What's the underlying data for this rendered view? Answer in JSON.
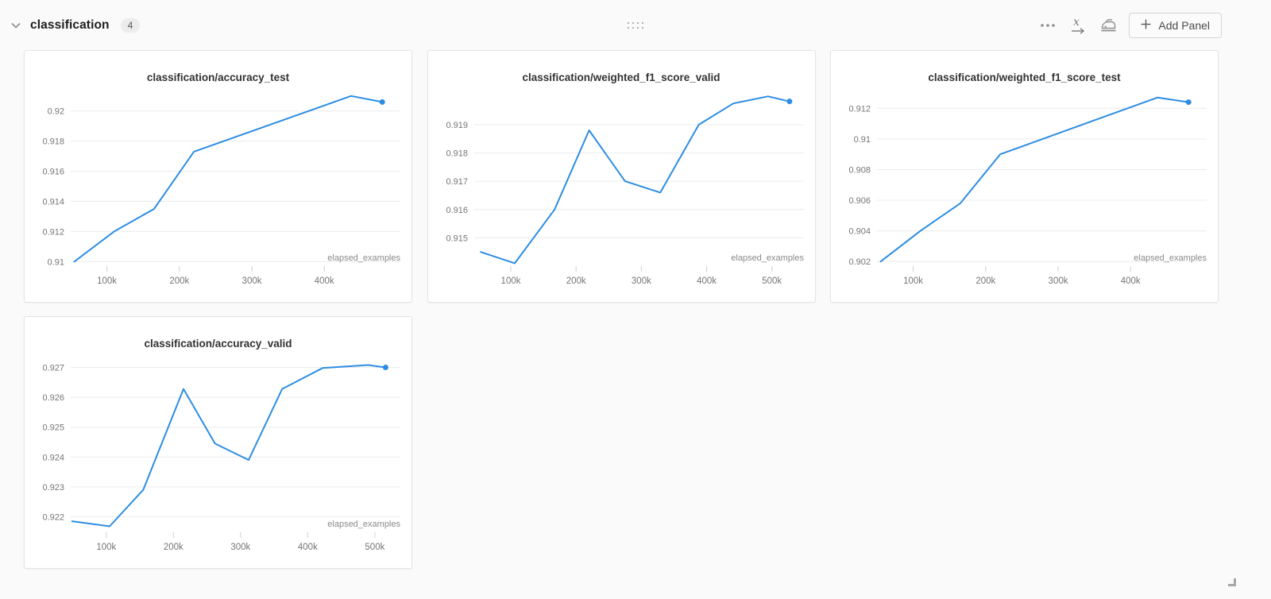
{
  "header": {
    "title": "classification",
    "count": "4"
  },
  "toolbar": {
    "add_panel_label": "Add Panel",
    "icons": [
      "chevron-down-icon",
      "drag-handle-icon",
      "ellipsis-icon",
      "x-axis-icon",
      "iron-panel-settings-icon",
      "plus-icon",
      "resize-corner-icon"
    ]
  },
  "colors": {
    "line": "#2d8de2",
    "grid": "#ececec",
    "tick_text": "#757575",
    "panel_border": "#e4e4e4",
    "background": "#fafafa"
  },
  "chart_data": [
    {
      "type": "line",
      "title": "classification/accuracy_test",
      "xlabel": "elapsed_examples",
      "x_units": "thousands of examples",
      "legend": "none",
      "grid": "horizontal only",
      "xlim": [
        50,
        505
      ],
      "ylim": [
        0.9097,
        0.9212
      ],
      "xticks": [
        {
          "v": 100,
          "label": "100k"
        },
        {
          "v": 200,
          "label": "200k"
        },
        {
          "v": 300,
          "label": "300k"
        },
        {
          "v": 400,
          "label": "400k"
        }
      ],
      "yticks": [
        {
          "v": 0.91,
          "label": "0.91"
        },
        {
          "v": 0.912,
          "label": "0.912"
        },
        {
          "v": 0.914,
          "label": "0.914"
        },
        {
          "v": 0.916,
          "label": "0.916"
        },
        {
          "v": 0.918,
          "label": "0.918"
        },
        {
          "v": 0.92,
          "label": "0.92"
        }
      ],
      "points": [
        [
          55,
          0.91
        ],
        [
          110,
          0.912
        ],
        [
          165,
          0.9135
        ],
        [
          220,
          0.9173
        ],
        [
          437,
          0.921
        ],
        [
          480,
          0.9206
        ]
      ]
    },
    {
      "type": "line",
      "title": "classification/weighted_f1_score_valid",
      "xlabel": "elapsed_examples",
      "x_units": "thousands of examples",
      "legend": "none",
      "grid": "horizontal only",
      "xlim": [
        44,
        549
      ],
      "ylim": [
        0.914,
        0.92012
      ],
      "xticks": [
        {
          "v": 100,
          "label": "100k"
        },
        {
          "v": 200,
          "label": "200k"
        },
        {
          "v": 300,
          "label": "300k"
        },
        {
          "v": 400,
          "label": "400k"
        },
        {
          "v": 500,
          "label": "500k"
        }
      ],
      "yticks": [
        {
          "v": 0.915,
          "label": "0.915"
        },
        {
          "v": 0.916,
          "label": "0.916"
        },
        {
          "v": 0.917,
          "label": "0.917"
        },
        {
          "v": 0.918,
          "label": "0.918"
        },
        {
          "v": 0.919,
          "label": "0.919"
        }
      ],
      "points": [
        [
          54,
          0.9145
        ],
        [
          106,
          0.9141
        ],
        [
          167,
          0.916
        ],
        [
          220,
          0.9188
        ],
        [
          275,
          0.917
        ],
        [
          329,
          0.9166
        ],
        [
          388,
          0.919
        ],
        [
          441,
          0.91975
        ],
        [
          494,
          0.92
        ],
        [
          527,
          0.91982
        ]
      ]
    },
    {
      "type": "line",
      "title": "classification/weighted_f1_score_test",
      "xlabel": "elapsed_examples",
      "x_units": "thousands of examples",
      "legend": "none",
      "grid": "horizontal only",
      "xlim": [
        50,
        505
      ],
      "ylim": [
        0.9017,
        0.913
      ],
      "xticks": [
        {
          "v": 100,
          "label": "100k"
        },
        {
          "v": 200,
          "label": "200k"
        },
        {
          "v": 300,
          "label": "300k"
        },
        {
          "v": 400,
          "label": "400k"
        }
      ],
      "yticks": [
        {
          "v": 0.902,
          "label": "0.902"
        },
        {
          "v": 0.904,
          "label": "0.904"
        },
        {
          "v": 0.906,
          "label": "0.906"
        },
        {
          "v": 0.908,
          "label": "0.908"
        },
        {
          "v": 0.91,
          "label": "0.91"
        },
        {
          "v": 0.912,
          "label": "0.912"
        }
      ],
      "points": [
        [
          55,
          0.902
        ],
        [
          110,
          0.904
        ],
        [
          165,
          0.9058
        ],
        [
          220,
          0.909
        ],
        [
          437,
          0.9127
        ],
        [
          480,
          0.9124
        ]
      ]
    },
    {
      "type": "line",
      "title": "classification/accuracy_valid",
      "xlabel": "elapsed_examples",
      "x_units": "thousands of examples",
      "legend": "none",
      "grid": "horizontal only",
      "xlim": [
        47,
        538
      ],
      "ylim": [
        0.92148,
        0.92728
      ],
      "xticks": [
        {
          "v": 100,
          "label": "100k"
        },
        {
          "v": 200,
          "label": "200k"
        },
        {
          "v": 300,
          "label": "300k"
        },
        {
          "v": 400,
          "label": "400k"
        },
        {
          "v": 500,
          "label": "500k"
        }
      ],
      "yticks": [
        {
          "v": 0.922,
          "label": "0.922"
        },
        {
          "v": 0.923,
          "label": "0.923"
        },
        {
          "v": 0.924,
          "label": "0.924"
        },
        {
          "v": 0.925,
          "label": "0.925"
        },
        {
          "v": 0.926,
          "label": "0.926"
        },
        {
          "v": 0.927,
          "label": "0.927"
        }
      ],
      "points": [
        [
          49,
          0.92185
        ],
        [
          105,
          0.92168
        ],
        [
          155,
          0.9229
        ],
        [
          215,
          0.92628
        ],
        [
          262,
          0.92445
        ],
        [
          312,
          0.9239
        ],
        [
          362,
          0.92628
        ],
        [
          422,
          0.92698
        ],
        [
          490,
          0.92708
        ],
        [
          516,
          0.927
        ]
      ]
    }
  ]
}
